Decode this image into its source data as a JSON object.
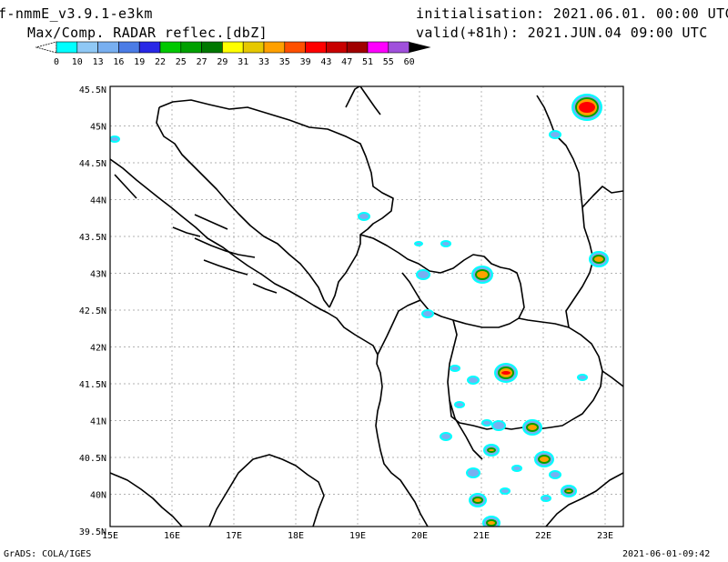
{
  "header": {
    "model": "f-nmmE_v3.9.1-e3km",
    "field": "Max/Comp. RADAR reflec.[dbZ]",
    "init": "initialisation: 2021.06.01. 00:00 UTC",
    "valid": "valid(+81h): 2021.JUN.04 09:00 UTC"
  },
  "colorbar": {
    "labels": [
      "0",
      "10",
      "13",
      "16",
      "19",
      "22",
      "25",
      "27",
      "29",
      "31",
      "33",
      "35",
      "39",
      "43",
      "47",
      "51",
      "55",
      "60"
    ],
    "colors": [
      "#00ffff",
      "#8fc8f5",
      "#78aff0",
      "#4b7ce6",
      "#2828e6",
      "#00c800",
      "#00a000",
      "#007800",
      "#ffff00",
      "#e6c800",
      "#ffa000",
      "#ff5000",
      "#ff0000",
      "#c80000",
      "#a00000",
      "#ff00ff",
      "#a050dc"
    ]
  },
  "map": {
    "lat_labels": [
      "45.5N",
      "45N",
      "44.5N",
      "44N",
      "43.5N",
      "43N",
      "42.5N",
      "42N",
      "41.5N",
      "41N",
      "40.5N",
      "40N",
      "39.5N"
    ],
    "lon_labels": [
      "15E",
      "16E",
      "17E",
      "18E",
      "19E",
      "20E",
      "21E",
      "22E",
      "23E"
    ]
  },
  "footer": {
    "left": "GrADS: COLA/IGES",
    "right": "2021-06-01-09:42"
  }
}
